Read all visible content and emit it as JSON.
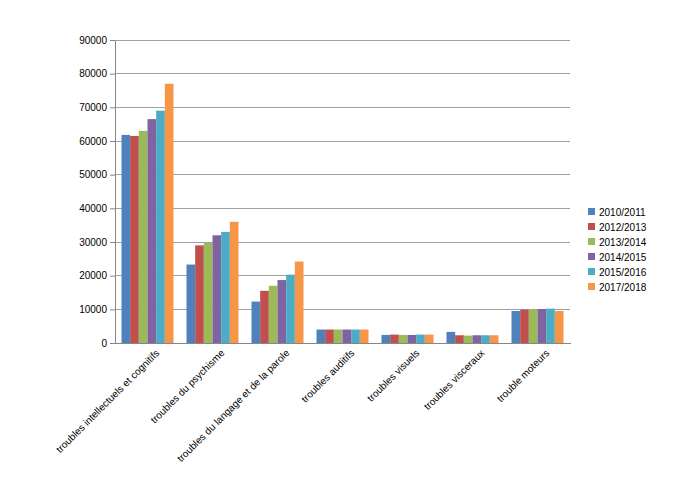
{
  "chart_data": {
    "type": "bar",
    "categories": [
      "troubles intellectuels et cognitifs",
      "troubles du psychisme",
      "troubles du langage et de la parole",
      "troubles auditifs",
      "troubles visuels",
      "troubles visceraux",
      "trouble moteurs"
    ],
    "series": [
      {
        "name": "2010/2011",
        "color": "#4f81bd",
        "values": [
          61800,
          23300,
          12300,
          4000,
          2400,
          3300,
          9500
        ]
      },
      {
        "name": "2012/2013",
        "color": "#c0504d",
        "values": [
          61500,
          29000,
          15500,
          4000,
          2500,
          2300,
          9900
        ]
      },
      {
        "name": "2013/2014",
        "color": "#9bbb59",
        "values": [
          63000,
          29800,
          17000,
          4000,
          2400,
          2200,
          10000
        ]
      },
      {
        "name": "2014/2015",
        "color": "#8064a2",
        "values": [
          66500,
          32000,
          18700,
          4000,
          2400,
          2300,
          10100
        ]
      },
      {
        "name": "2015/2016",
        "color": "#4bacc6",
        "values": [
          69000,
          33000,
          20300,
          4000,
          2500,
          2300,
          10200
        ]
      },
      {
        "name": "2017/2018",
        "color": "#f79646",
        "values": [
          77000,
          36000,
          24200,
          4000,
          2500,
          2300,
          9500
        ]
      }
    ],
    "ylim": [
      0,
      90000
    ],
    "yticks": [
      0,
      10000,
      20000,
      30000,
      40000,
      50000,
      60000,
      70000,
      80000,
      90000
    ],
    "grid": true,
    "legend": "right"
  }
}
